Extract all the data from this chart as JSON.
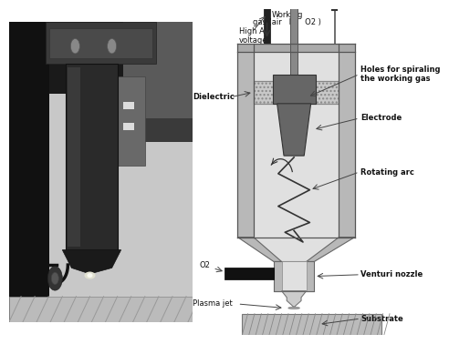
{
  "white": "#ffffff",
  "bg": "#f0f0f0",
  "gray_light": "#d0d0d0",
  "gray_med": "#b0b0b0",
  "gray_dark": "#888888",
  "gray_darker": "#666666",
  "black": "#111111",
  "device_fill": "#d8d8d8",
  "wall_fill": "#aaaaaa",
  "elec_fill": "#666666",
  "diel_fill": "#bbbbbb",
  "venturi_fill": "#cccccc",
  "substrate_fill": "#c8c8c8",
  "labels": {
    "working_gas": "Working\ngas (air   N₂   O2 )",
    "high_ac": "High AC\nvoltage",
    "dielectric": "Dielectric",
    "holes": "Holes for spiraling\nthe working gas",
    "electrode": "Electrode",
    "rotating_arc": "Rotating arc",
    "o2": "O2",
    "venturi": "Venturi nozzle",
    "plasma_jet": "Plasma jet",
    "substrate": "Substrate"
  },
  "fs": 6.0
}
